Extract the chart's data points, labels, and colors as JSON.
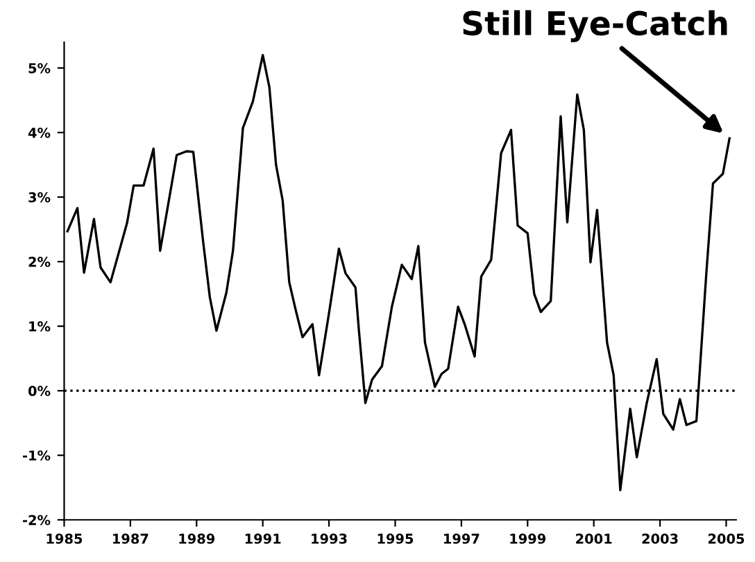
{
  "chart_data": {
    "type": "line",
    "color": "#000000",
    "line_style": "solid",
    "marker": "none",
    "grid": false,
    "legend": false,
    "x": [
      1985.1,
      1985.4,
      1985.6,
      1985.9,
      1986.1,
      1986.4,
      1986.9,
      1987.1,
      1987.4,
      1987.7,
      1987.9,
      1988.4,
      1988.7,
      1988.9,
      1989.2,
      1989.4,
      1989.6,
      1989.9,
      1990.1,
      1990.4,
      1990.7,
      1991.0,
      1991.2,
      1991.4,
      1991.6,
      1991.8,
      1992.0,
      1992.2,
      1992.5,
      1992.7,
      1993.0,
      1993.3,
      1993.5,
      1993.8,
      1993.9,
      1994.1,
      1994.3,
      1994.6,
      1994.9,
      1995.2,
      1995.5,
      1995.7,
      1995.9,
      1996.2,
      1996.4,
      1996.6,
      1996.9,
      1997.1,
      1997.4,
      1997.6,
      1997.9,
      1998.2,
      1998.5,
      1998.7,
      1999.0,
      1999.2,
      1999.4,
      1999.7,
      2000.0,
      2000.2,
      2000.5,
      2000.7,
      2000.9,
      2001.1,
      2001.4,
      2001.6,
      2001.8,
      2002.1,
      2002.3,
      2002.6,
      2002.9,
      2003.1,
      2003.4,
      2003.6,
      2003.8,
      2004.1,
      2004.4,
      2004.6,
      2004.9,
      2005.1
    ],
    "values": [
      2.47,
      2.83,
      1.83,
      2.66,
      1.91,
      1.68,
      2.6,
      3.18,
      3.18,
      3.75,
      2.17,
      3.65,
      3.71,
      3.7,
      2.3,
      1.45,
      0.93,
      1.52,
      2.17,
      4.07,
      4.48,
      5.2,
      4.7,
      3.5,
      2.95,
      1.68,
      1.24,
      0.83,
      1.03,
      0.24,
      1.2,
      2.2,
      1.82,
      1.6,
      0.96,
      -0.19,
      0.17,
      0.38,
      1.3,
      1.95,
      1.73,
      2.24,
      0.75,
      0.06,
      0.26,
      0.34,
      1.3,
      1.03,
      0.53,
      1.77,
      2.03,
      3.68,
      4.04,
      2.56,
      2.44,
      1.5,
      1.22,
      1.39,
      4.25,
      2.61,
      4.59,
      4.04,
      1.99,
      2.8,
      0.75,
      0.24,
      -1.54,
      -0.28,
      -1.03,
      -0.19,
      0.49,
      -0.36,
      -0.6,
      -0.13,
      -0.53,
      -0.47,
      1.82,
      3.21,
      3.36,
      3.91
    ],
    "xlim": [
      1985,
      2005.3
    ],
    "ylim": [
      -2,
      5.4
    ],
    "xticks": [
      1985,
      1987,
      1989,
      1991,
      1993,
      1995,
      1997,
      1999,
      2001,
      2003,
      2005
    ],
    "yticks": [
      {
        "value": -2,
        "label": "-2%"
      },
      {
        "value": -1,
        "label": "-1%"
      },
      {
        "value": 0,
        "label": "0%"
      },
      {
        "value": 1,
        "label": "1%"
      },
      {
        "value": 2,
        "label": "2%"
      },
      {
        "value": 3,
        "label": "3%"
      },
      {
        "value": 4,
        "label": "4%"
      },
      {
        "value": 5,
        "label": "5%"
      }
    ],
    "ref_lines": [
      {
        "axis": "y",
        "value": 0,
        "color": "#000000",
        "line_style": "dotted"
      }
    ],
    "annotations": [
      {
        "text": "Still Eye-Catch",
        "x": 2005.1,
        "y": 3.91
      }
    ]
  }
}
